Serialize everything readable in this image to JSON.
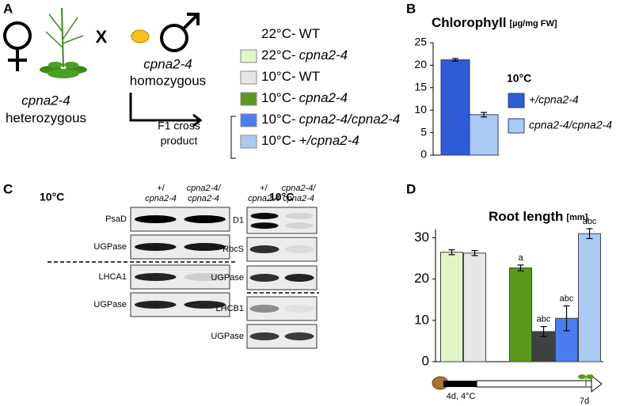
{
  "panel_a": {
    "label": "A",
    "female": {
      "genotype": "cpna2-4",
      "zygosity": "heterozygous"
    },
    "cross": "X",
    "male": {
      "genotype": "cpna2-4",
      "zygosity": "homozygous"
    },
    "f1": [
      "F1 cross",
      "product"
    ],
    "legend": [
      {
        "condition": "22°C-",
        "genotype": "WT",
        "italic": false,
        "color": "#ffffff"
      },
      {
        "condition": "22°C-",
        "genotype": "cpna2-4",
        "italic": true,
        "color": "#e2f5c6"
      },
      {
        "condition": "10°C-",
        "genotype": "WT",
        "italic": false,
        "color": "#e6e6e6"
      },
      {
        "condition": "10°C-",
        "genotype": "cpna2-4",
        "italic": true,
        "color": "#5a9a1a"
      },
      {
        "condition": "10°C-",
        "genotype": "cpna2-4/cpna2-4",
        "italic": true,
        "color": "#4a7ef0"
      },
      {
        "condition": "10°C-",
        "genotype": "+/cpna2-4",
        "italic": true,
        "color": "#a9cbf4"
      }
    ]
  },
  "panel_b": {
    "label": "B"
  },
  "panel_c": {
    "label": "C",
    "blots": [
      {
        "temp": "10°C",
        "lanes": [
          [
            "+/",
            "cpna2-4"
          ],
          [
            "cpna2-4/",
            "cpna2-4"
          ]
        ],
        "rows": [
          "PsaD",
          "UGPase",
          "LHCA1",
          "UGPase"
        ]
      },
      {
        "temp": "10°C",
        "lanes": [
          [
            "+/",
            "cpna2-4"
          ],
          [
            "cpna2-4/",
            "cpna2-4"
          ]
        ],
        "rows": [
          "D1",
          "RbcS",
          "UGPase",
          "LHCB1",
          "UGPase"
        ]
      }
    ]
  },
  "panel_d": {
    "label": "D",
    "timeline": {
      "cold": "4d, 4°C",
      "end": "7d"
    }
  },
  "chart_data": [
    {
      "type": "bar",
      "title": "Chlorophyll",
      "unit": "[µg/mg FW]",
      "legend_title": "10°C",
      "categories": [
        null
      ],
      "series": [
        {
          "name": "+/cpna2-4",
          "color": "#2f5bd6",
          "values": [
            21.2
          ],
          "errors": [
            0.3
          ]
        },
        {
          "name": "cpna2-4/cpna2-4",
          "color": "#a9cbf4",
          "values": [
            9
          ],
          "errors": [
            0.5
          ]
        }
      ],
      "ylim": [
        0,
        25
      ],
      "yticks": [
        0,
        5,
        10,
        15,
        20,
        25
      ]
    },
    {
      "type": "bar",
      "title": "Root length",
      "unit": "[mm]",
      "categories": [
        null,
        null,
        null,
        null,
        null,
        null,
        null
      ],
      "values": [
        26.5,
        26.3,
        null,
        22.7,
        7.3,
        10.5,
        31
      ],
      "errors": [
        0.6,
        0.6,
        null,
        0.7,
        1.2,
        3,
        1.2
      ],
      "colors": [
        "#e2f5c6",
        "#e6e6e6",
        null,
        "#5a9a1a",
        "#404040",
        "#4a7ef0",
        "#a9cbf4"
      ],
      "letters": [
        null,
        null,
        null,
        "a",
        "abc",
        "abc",
        "abc"
      ],
      "ylim": [
        0,
        32
      ],
      "yticks": [
        0,
        10,
        20,
        30
      ]
    }
  ]
}
